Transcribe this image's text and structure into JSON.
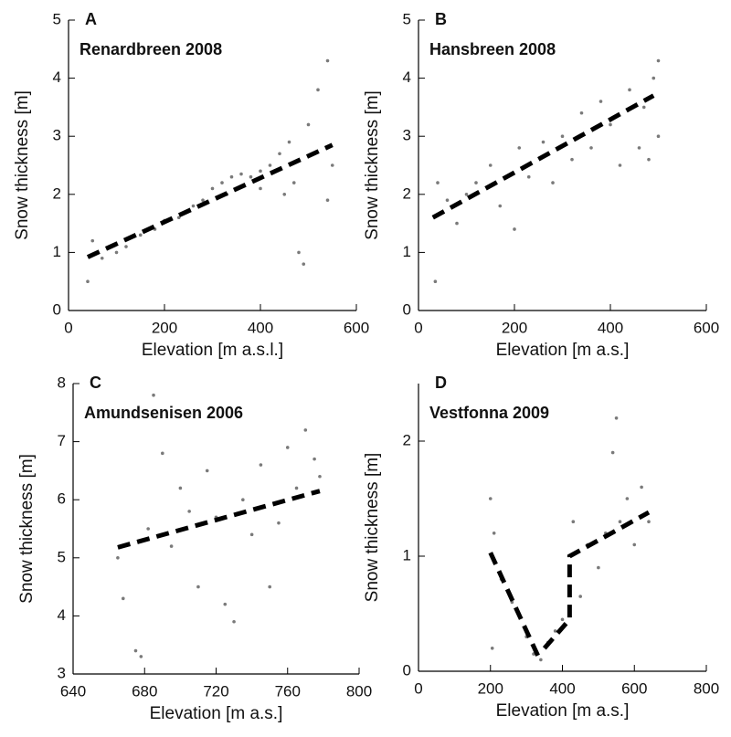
{
  "chart_data": [
    {
      "type": "scatter",
      "label": "A",
      "title": "Renardbreen 2008",
      "xlabel": "Elevation [m a.s.l.]",
      "ylabel": "Snow thickness [m]",
      "xlim": [
        0,
        600
      ],
      "xticks": [
        0,
        200,
        400,
        600
      ],
      "ylim": [
        0,
        5
      ],
      "yticks": [
        0,
        1,
        2,
        3,
        4,
        5
      ],
      "series": [
        {
          "mode": "markers",
          "color": "#7a7a7a",
          "x": [
            40,
            50,
            70,
            100,
            120,
            150,
            180,
            200,
            230,
            260,
            280,
            300,
            320,
            340,
            360,
            380,
            400,
            420,
            440,
            460,
            470,
            480,
            490,
            500,
            520,
            540,
            540,
            550,
            330,
            400,
            450
          ],
          "values": [
            0.5,
            1.2,
            0.9,
            1.0,
            1.1,
            1.3,
            1.4,
            1.55,
            1.6,
            1.8,
            1.9,
            2.1,
            2.2,
            2.3,
            2.35,
            2.3,
            2.4,
            2.5,
            2.7,
            2.9,
            2.2,
            1.0,
            0.8,
            3.2,
            3.8,
            4.3,
            1.9,
            2.5,
            2.0,
            2.1,
            2.0
          ]
        },
        {
          "mode": "dashed-line",
          "color": "#000000",
          "x": [
            40,
            550
          ],
          "values": [
            0.92,
            2.85
          ]
        }
      ]
    },
    {
      "type": "scatter",
      "label": "B",
      "title": "Hansbreen 2008",
      "xlabel": "Elevation [m a.s.]",
      "ylabel": "Snow thickness [m]",
      "xlim": [
        0,
        600
      ],
      "xticks": [
        0,
        200,
        400,
        600
      ],
      "ylim": [
        0,
        5
      ],
      "yticks": [
        0,
        1,
        2,
        3,
        4,
        5
      ],
      "series": [
        {
          "mode": "markers",
          "color": "#7a7a7a",
          "x": [
            35,
            40,
            60,
            80,
            100,
            120,
            150,
            170,
            200,
            210,
            230,
            260,
            280,
            300,
            320,
            340,
            360,
            380,
            400,
            420,
            440,
            460,
            470,
            480,
            490,
            500,
            500
          ],
          "values": [
            0.5,
            2.2,
            1.9,
            1.5,
            2.0,
            2.2,
            2.5,
            1.8,
            1.4,
            2.8,
            2.3,
            2.9,
            2.2,
            3.0,
            2.6,
            3.4,
            2.8,
            3.6,
            3.2,
            2.5,
            3.8,
            2.8,
            3.5,
            2.6,
            4.0,
            4.3,
            3.0
          ]
        },
        {
          "mode": "dashed-line",
          "color": "#000000",
          "x": [
            30,
            490
          ],
          "values": [
            1.6,
            3.7
          ]
        }
      ]
    },
    {
      "type": "scatter",
      "label": "C",
      "title": "Amundsenisen 2006",
      "xlabel": "Elevation [m a.s.]",
      "ylabel": "Snow thickness [m]",
      "xlim": [
        640,
        800
      ],
      "xticks": [
        640,
        680,
        720,
        760,
        800
      ],
      "ylim": [
        3,
        8
      ],
      "yticks": [
        3,
        4,
        5,
        6,
        7,
        8
      ],
      "series": [
        {
          "mode": "markers",
          "color": "#7a7a7a",
          "x": [
            665,
            668,
            675,
            678,
            682,
            685,
            690,
            695,
            700,
            705,
            710,
            715,
            720,
            725,
            730,
            735,
            740,
            745,
            750,
            755,
            760,
            765,
            770,
            775,
            778
          ],
          "values": [
            5.0,
            4.3,
            3.4,
            3.3,
            5.5,
            7.8,
            6.8,
            5.2,
            6.2,
            5.8,
            4.5,
            6.5,
            5.7,
            4.2,
            3.9,
            6.0,
            5.4,
            6.6,
            4.5,
            5.6,
            6.9,
            6.2,
            7.2,
            6.7,
            6.4
          ]
        },
        {
          "mode": "dashed-line",
          "color": "#000000",
          "x": [
            665,
            778
          ],
          "values": [
            5.18,
            6.15
          ]
        }
      ]
    },
    {
      "type": "scatter",
      "label": "D",
      "title": "Vestfonna 2009",
      "xlabel": "Elevation [m a.s.]",
      "ylabel": "Snow thickness [m]",
      "xlim": [
        0,
        800
      ],
      "xticks": [
        0,
        200,
        400,
        600,
        800
      ],
      "ylim": [
        0,
        2.5
      ],
      "yticks": [
        0,
        1,
        2
      ],
      "series": [
        {
          "mode": "markers",
          "color": "#7a7a7a",
          "x": [
            200,
            205,
            210,
            230,
            260,
            300,
            320,
            340,
            360,
            380,
            400,
            420,
            430,
            450,
            470,
            500,
            520,
            540,
            550,
            560,
            580,
            600,
            620,
            640
          ],
          "values": [
            1.5,
            0.2,
            1.2,
            0.8,
            0.6,
            0.3,
            0.15,
            0.1,
            0.25,
            0.35,
            0.45,
            0.55,
            1.3,
            0.65,
            1.1,
            0.9,
            1.2,
            1.9,
            2.2,
            1.3,
            1.5,
            1.1,
            1.6,
            1.3
          ]
        },
        {
          "mode": "dashed-line",
          "color": "#000000",
          "x": [
            200,
            340,
            340,
            350,
            420,
            420,
            640
          ],
          "values": [
            1.03,
            0.08,
            null,
            0.2,
            0.45,
            1.0,
            1.38
          ]
        }
      ]
    }
  ]
}
